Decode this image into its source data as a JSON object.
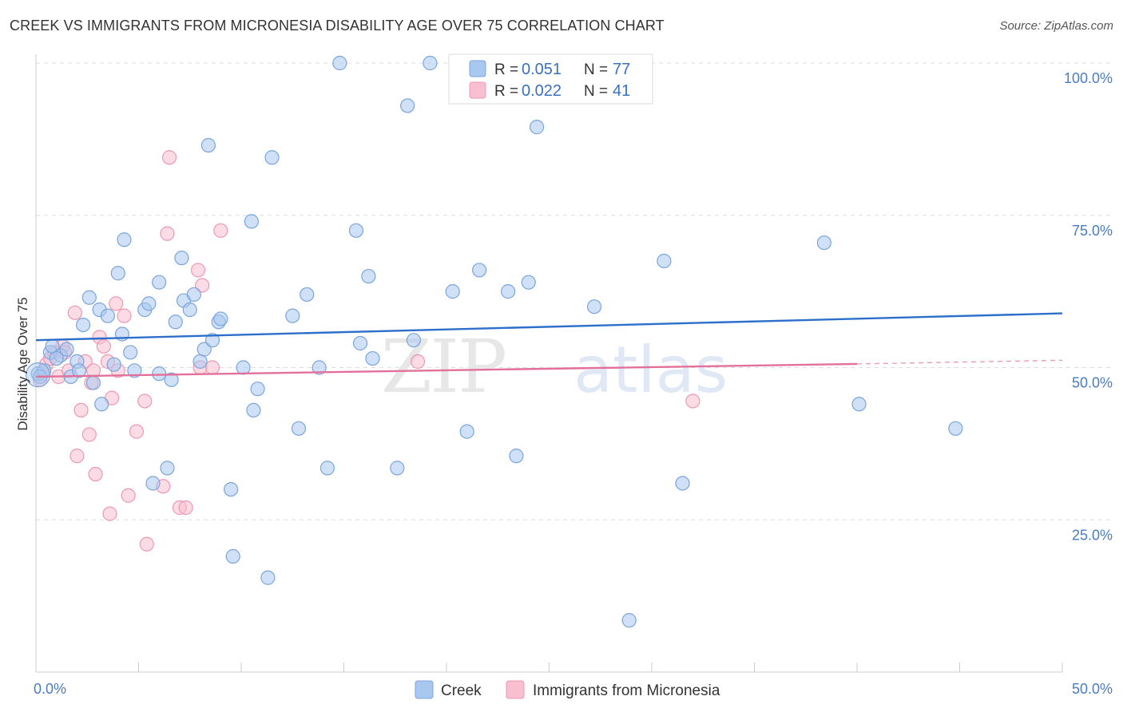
{
  "title": "CREEK VS IMMIGRANTS FROM MICRONESIA DISABILITY AGE OVER 75 CORRELATION CHART",
  "source": "Source: ZipAtlas.com",
  "watermark": {
    "zip": "ZIP",
    "atlas": "atlas"
  },
  "legend_top": {
    "r_label": "R = ",
    "n_label": "N = ",
    "rows": [
      {
        "r": "0.051",
        "n": "77"
      },
      {
        "r": "0.022",
        "n": "41"
      }
    ]
  },
  "colors": {
    "creek_fill": "#a9c8f0",
    "creek_stroke": "#7aa5dc",
    "creek_line": "#2c6fcb",
    "micronesia_fill": "#f7bfd0",
    "micronesia_stroke": "#ee98b3",
    "micronesia_line": "#e2709a",
    "grid": "#dddddd",
    "axis_text": "#4a7cc4"
  },
  "chart_data": {
    "type": "scatter",
    "title": "CREEK VS IMMIGRANTS FROM MICRONESIA DISABILITY AGE OVER 75 CORRELATION CHART",
    "xlabel": "",
    "ylabel": "Disability Age Over 75",
    "xlim": [
      0,
      50
    ],
    "ylim": [
      0,
      103
    ],
    "x_tick_labels": [
      "0.0%",
      "50.0%"
    ],
    "y_ticks": [
      25,
      50,
      75,
      100
    ],
    "y_tick_labels": [
      "25.0%",
      "50.0%",
      "75.0%",
      "100.0%"
    ],
    "grid": true,
    "legend_position": "bottom",
    "series": [
      {
        "name": "Creek",
        "r": 0.051,
        "n": 77,
        "trend": {
          "x": [
            0,
            50
          ],
          "y": [
            54.5,
            58.9
          ]
        },
        "points": [
          [
            0.1,
            49.0
          ],
          [
            0.4,
            49.5
          ],
          [
            0.7,
            52.5
          ],
          [
            0.8,
            53.5
          ],
          [
            1.2,
            52.0
          ],
          [
            1.5,
            53.0
          ],
          [
            1.7,
            48.5
          ],
          [
            2.0,
            51.0
          ],
          [
            2.1,
            49.5
          ],
          [
            2.3,
            57.0
          ],
          [
            2.6,
            61.5
          ],
          [
            2.8,
            47.5
          ],
          [
            3.1,
            59.5
          ],
          [
            3.2,
            44.0
          ],
          [
            3.5,
            58.5
          ],
          [
            3.8,
            50.5
          ],
          [
            4.0,
            65.5
          ],
          [
            4.2,
            55.5
          ],
          [
            4.3,
            71.0
          ],
          [
            4.6,
            52.5
          ],
          [
            4.8,
            49.5
          ],
          [
            5.3,
            59.5
          ],
          [
            5.5,
            60.5
          ],
          [
            5.7,
            31.0
          ],
          [
            6.0,
            64.0
          ],
          [
            6.0,
            49.0
          ],
          [
            6.4,
            33.5
          ],
          [
            6.6,
            48.0
          ],
          [
            6.8,
            57.5
          ],
          [
            7.1,
            68.0
          ],
          [
            7.2,
            61.0
          ],
          [
            7.5,
            59.5
          ],
          [
            7.7,
            62.0
          ],
          [
            8.0,
            51.0
          ],
          [
            8.2,
            53.0
          ],
          [
            8.4,
            86.5
          ],
          [
            8.6,
            54.5
          ],
          [
            8.9,
            57.5
          ],
          [
            9.0,
            58.0
          ],
          [
            9.5,
            30.0
          ],
          [
            9.6,
            19.0
          ],
          [
            10.1,
            50.0
          ],
          [
            10.5,
            74.0
          ],
          [
            10.6,
            43.0
          ],
          [
            10.8,
            46.5
          ],
          [
            11.3,
            15.5
          ],
          [
            11.5,
            84.5
          ],
          [
            12.5,
            58.5
          ],
          [
            12.8,
            40.0
          ],
          [
            13.2,
            62.0
          ],
          [
            13.8,
            50.0
          ],
          [
            14.2,
            33.5
          ],
          [
            14.8,
            100.0
          ],
          [
            15.6,
            72.5
          ],
          [
            15.8,
            54.0
          ],
          [
            16.2,
            65.0
          ],
          [
            16.4,
            51.5
          ],
          [
            17.6,
            33.5
          ],
          [
            18.1,
            93.0
          ],
          [
            18.4,
            54.5
          ],
          [
            19.2,
            100.0
          ],
          [
            20.3,
            62.5
          ],
          [
            21.0,
            39.5
          ],
          [
            21.6,
            66.0
          ],
          [
            23.0,
            62.5
          ],
          [
            23.4,
            35.5
          ],
          [
            24.0,
            64.0
          ],
          [
            24.4,
            89.5
          ],
          [
            27.2,
            60.0
          ],
          [
            28.9,
            8.5
          ],
          [
            30.6,
            67.5
          ],
          [
            31.5,
            31.0
          ],
          [
            38.4,
            70.5
          ],
          [
            40.1,
            44.0
          ],
          [
            44.8,
            40.0
          ],
          [
            0.2,
            48.5
          ],
          [
            1.0,
            51.5
          ]
        ]
      },
      {
        "name": "Immigrants from Micronesia",
        "r": 0.022,
        "n": 41,
        "trend": {
          "x": [
            0,
            40
          ],
          "y": [
            48.5,
            50.6
          ]
        },
        "trend_dashed": {
          "x": [
            40,
            50
          ],
          "y": [
            50.6,
            51.2
          ]
        },
        "points": [
          [
            0.3,
            49.0
          ],
          [
            0.5,
            50.5
          ],
          [
            0.7,
            51.5
          ],
          [
            0.9,
            52.5
          ],
          [
            1.1,
            48.5
          ],
          [
            1.3,
            53.5
          ],
          [
            1.6,
            49.5
          ],
          [
            1.9,
            59.0
          ],
          [
            2.0,
            35.5
          ],
          [
            2.2,
            43.0
          ],
          [
            2.4,
            51.0
          ],
          [
            2.6,
            39.0
          ],
          [
            2.8,
            49.5
          ],
          [
            2.9,
            32.5
          ],
          [
            3.1,
            55.0
          ],
          [
            3.3,
            53.5
          ],
          [
            3.5,
            51.0
          ],
          [
            3.6,
            26.0
          ],
          [
            3.7,
            45.0
          ],
          [
            3.9,
            60.5
          ],
          [
            4.0,
            49.5
          ],
          [
            4.3,
            58.5
          ],
          [
            4.5,
            29.0
          ],
          [
            4.9,
            39.5
          ],
          [
            5.3,
            44.5
          ],
          [
            5.4,
            21.0
          ],
          [
            6.2,
            30.5
          ],
          [
            6.4,
            72.0
          ],
          [
            6.5,
            84.5
          ],
          [
            7.0,
            27.0
          ],
          [
            7.3,
            27.0
          ],
          [
            7.9,
            66.0
          ],
          [
            8.0,
            50.0
          ],
          [
            8.1,
            63.5
          ],
          [
            8.6,
            50.0
          ],
          [
            9.0,
            72.5
          ],
          [
            18.6,
            51.0
          ],
          [
            32.0,
            44.5
          ],
          [
            0.2,
            48.0
          ],
          [
            1.4,
            52.5
          ],
          [
            2.7,
            47.5
          ]
        ]
      }
    ]
  }
}
